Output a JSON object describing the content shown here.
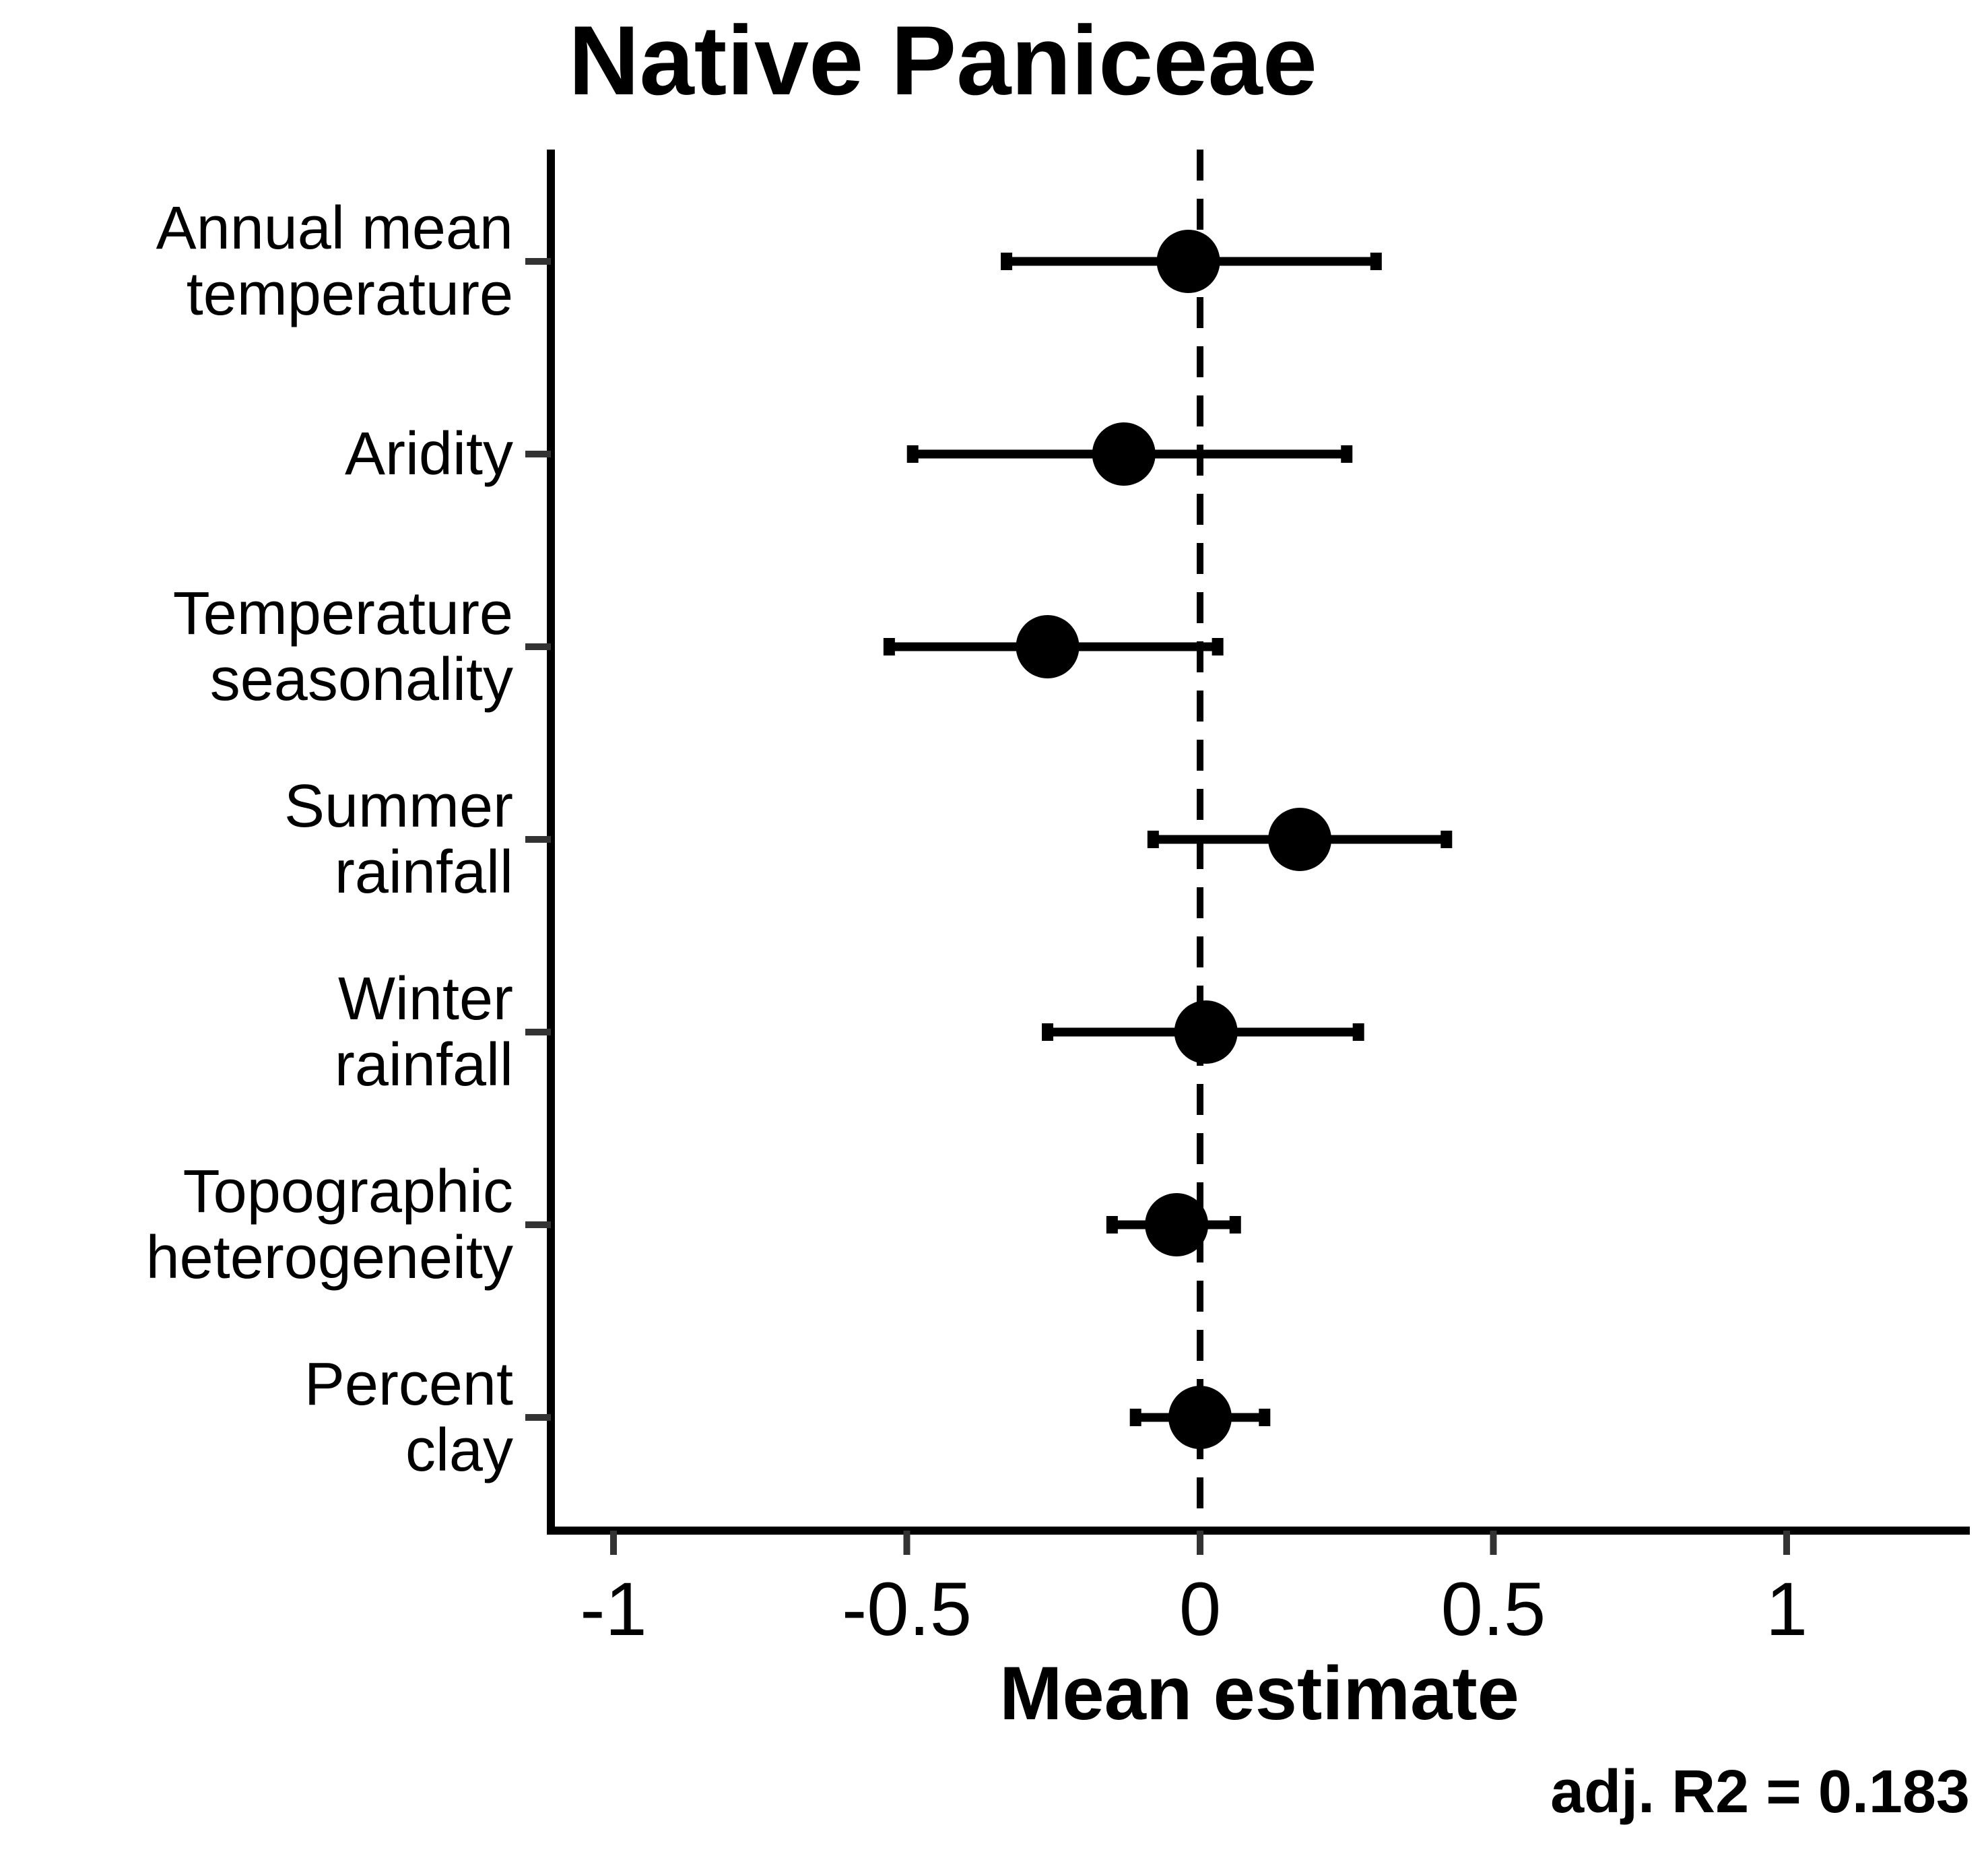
{
  "chart_data": {
    "type": "forest",
    "title": "Native Paniceae",
    "xlabel": "Mean estimate",
    "xlim": [
      -1.11,
      1.31
    ],
    "x_ticks": [
      -1,
      -0.5,
      0,
      0.5,
      1
    ],
    "x_tick_labels": [
      "-1",
      "-0.5",
      "0",
      "0.5",
      "1"
    ],
    "reference_line": 0,
    "annotation": "adj. R2 = 0.183",
    "categories": [
      [
        "Annual mean",
        "temperature"
      ],
      [
        "Aridity"
      ],
      [
        "Temperature",
        "seasonality"
      ],
      [
        "Summer",
        "rainfall"
      ],
      [
        "Winter",
        "rainfall"
      ],
      [
        "Topographic",
        "heterogeneity"
      ],
      [
        "Percent",
        "clay"
      ]
    ],
    "estimates": [
      -0.02,
      -0.13,
      -0.26,
      0.17,
      0.01,
      -0.04,
      0.0
    ],
    "lower": [
      -0.33,
      -0.49,
      -0.53,
      -0.08,
      -0.26,
      -0.15,
      -0.11
    ],
    "upper": [
      0.3,
      0.25,
      0.03,
      0.42,
      0.27,
      0.06,
      0.11
    ]
  }
}
